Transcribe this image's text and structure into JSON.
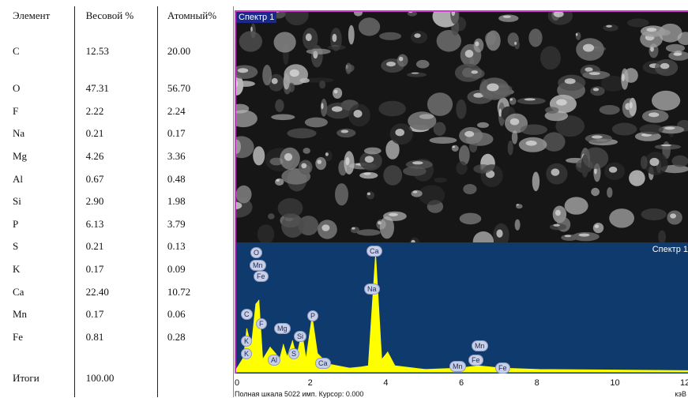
{
  "table": {
    "headers": [
      "Элемент",
      "Весовой %",
      "Атомный%"
    ],
    "rows": [
      [
        "C",
        "12.53",
        "20.00"
      ],
      [
        "O",
        "47.31",
        "56.70"
      ],
      [
        "F",
        "2.22",
        "2.24"
      ],
      [
        "Na",
        "0.21",
        "0.17"
      ],
      [
        "Mg",
        "4.26",
        "3.36"
      ],
      [
        "Al",
        "0.67",
        "0.48"
      ],
      [
        "Si",
        "2.90",
        "1.98"
      ],
      [
        "P",
        "6.13",
        "3.79"
      ],
      [
        "S",
        "0.21",
        "0.13"
      ],
      [
        "K",
        "0.17",
        "0.09"
      ],
      [
        "Ca",
        "22.40",
        "10.72"
      ],
      [
        "Mn",
        "0.17",
        "0.06"
      ],
      [
        "Fe",
        "0.81",
        "0.28"
      ]
    ],
    "total_label": "Итоги",
    "total_value": "100.00"
  },
  "image_panel": {
    "label": "Спектр 1"
  },
  "spectrum": {
    "label": "Спектр 1",
    "status": "Полная шкала 5022 имп. Курсор: 0.000",
    "units": "кэВ",
    "x_ticks": [
      "0",
      "2",
      "4",
      "6",
      "8",
      "10",
      "12"
    ],
    "peak_labels": [
      "O",
      "Mn",
      "Fe",
      "C",
      "F",
      "Mg",
      "Si",
      "P",
      "K",
      "Ca",
      "Na",
      "Al",
      "S",
      "Ca",
      "K",
      "Mn",
      "Fe",
      "Mn",
      "Fe"
    ]
  },
  "chart_data": {
    "type": "line",
    "title": "",
    "xlabel": "кэВ",
    "ylabel": "",
    "xlim": [
      0,
      12
    ],
    "x": [
      0.0,
      0.2,
      0.28,
      0.4,
      0.52,
      0.6,
      0.7,
      0.9,
      1.04,
      1.15,
      1.25,
      1.35,
      1.49,
      1.6,
      1.74,
      1.85,
      2.01,
      2.15,
      2.31,
      2.5,
      3.0,
      3.31,
      3.5,
      3.69,
      3.85,
      4.01,
      4.2,
      5.0,
      5.9,
      6.4,
      7.06,
      8.0,
      12.0
    ],
    "y": [
      0.02,
      0.12,
      0.35,
      0.2,
      0.55,
      0.58,
      0.1,
      0.2,
      0.15,
      0.1,
      0.22,
      0.12,
      0.25,
      0.12,
      0.32,
      0.1,
      0.45,
      0.15,
      0.1,
      0.06,
      0.03,
      0.04,
      0.05,
      0.95,
      0.1,
      0.16,
      0.05,
      0.02,
      0.03,
      0.05,
      0.03,
      0.02,
      0.01
    ],
    "colors": {
      "line": "#ffff00",
      "background": "#0f3a6e"
    }
  }
}
